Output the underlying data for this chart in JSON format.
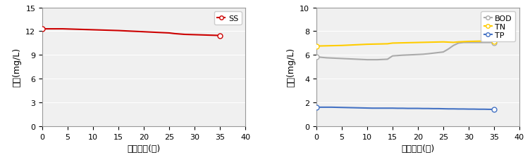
{
  "chart1": {
    "xlabel": "운전기간(일)",
    "ylabel": "농도(mg/L)",
    "ylim": [
      0,
      15
    ],
    "xlim": [
      0,
      40
    ],
    "yticks": [
      0,
      3,
      6,
      9,
      12,
      15
    ],
    "xticks": [
      0,
      5,
      10,
      15,
      20,
      25,
      30,
      35,
      40
    ],
    "series": [
      {
        "label": "SS",
        "color": "#cc0000",
        "marker": "o",
        "marker_color": "#cc0000",
        "x": [
          0,
          1,
          2,
          3,
          4,
          5,
          6,
          7,
          8,
          9,
          10,
          11,
          12,
          13,
          14,
          15,
          16,
          17,
          18,
          19,
          20,
          21,
          22,
          23,
          24,
          25,
          26,
          27,
          28,
          29,
          30,
          31,
          32,
          33,
          34,
          35
        ],
        "y": [
          12.3,
          12.3,
          12.3,
          12.3,
          12.3,
          12.28,
          12.26,
          12.24,
          12.22,
          12.2,
          12.18,
          12.16,
          12.14,
          12.12,
          12.1,
          12.08,
          12.05,
          12.02,
          11.99,
          11.96,
          11.93,
          11.9,
          11.87,
          11.84,
          11.81,
          11.78,
          11.7,
          11.65,
          11.6,
          11.58,
          11.56,
          11.54,
          11.52,
          11.5,
          11.48,
          11.46
        ]
      }
    ]
  },
  "chart2": {
    "xlabel": "운전기간(일)",
    "ylabel": "농도(mg/L)",
    "ylim": [
      0,
      10
    ],
    "xlim": [
      0,
      40
    ],
    "yticks": [
      0,
      2,
      4,
      6,
      8,
      10
    ],
    "xticks": [
      0,
      5,
      10,
      15,
      20,
      25,
      30,
      35,
      40
    ],
    "series": [
      {
        "label": "BOD",
        "color": "#aaaaaa",
        "marker": "o",
        "marker_color": "#aaaaaa",
        "x": [
          0,
          1,
          2,
          3,
          4,
          5,
          6,
          7,
          8,
          9,
          10,
          11,
          12,
          13,
          14,
          15,
          16,
          17,
          18,
          19,
          20,
          21,
          22,
          23,
          24,
          25,
          26,
          27,
          28,
          29,
          30,
          31,
          32,
          33,
          34,
          35
        ],
        "y": [
          5.85,
          5.8,
          5.76,
          5.74,
          5.72,
          5.7,
          5.68,
          5.66,
          5.64,
          5.62,
          5.6,
          5.6,
          5.6,
          5.62,
          5.64,
          5.92,
          5.95,
          5.98,
          6.0,
          6.02,
          6.04,
          6.06,
          6.1,
          6.15,
          6.2,
          6.25,
          6.5,
          6.8,
          7.0,
          7.05,
          7.05,
          7.05,
          7.05,
          7.05,
          7.05,
          7.05
        ]
      },
      {
        "label": "TN",
        "color": "#ffcc00",
        "marker": "o",
        "marker_color": "#ffcc00",
        "x": [
          0,
          1,
          2,
          3,
          4,
          5,
          6,
          7,
          8,
          9,
          10,
          11,
          12,
          13,
          14,
          15,
          16,
          17,
          18,
          19,
          20,
          21,
          22,
          23,
          24,
          25,
          26,
          27,
          28,
          29,
          30,
          31,
          32,
          33,
          34,
          35
        ],
        "y": [
          6.75,
          6.76,
          6.77,
          6.78,
          6.79,
          6.8,
          6.82,
          6.84,
          6.86,
          6.88,
          6.9,
          6.91,
          6.92,
          6.93,
          6.94,
          7.0,
          7.01,
          7.02,
          7.03,
          7.04,
          7.05,
          7.06,
          7.07,
          7.08,
          7.09,
          7.1,
          7.08,
          7.06,
          7.1,
          7.12,
          7.14,
          7.15,
          7.16,
          7.16,
          7.16,
          7.16
        ]
      },
      {
        "label": "TP",
        "color": "#4472c4",
        "marker": "o",
        "marker_color": "#4472c4",
        "x": [
          0,
          1,
          2,
          3,
          4,
          5,
          6,
          7,
          8,
          9,
          10,
          11,
          12,
          13,
          14,
          15,
          16,
          17,
          18,
          19,
          20,
          21,
          22,
          23,
          24,
          25,
          26,
          27,
          28,
          29,
          30,
          31,
          32,
          33,
          34,
          35
        ],
        "y": [
          1.6,
          1.6,
          1.6,
          1.6,
          1.59,
          1.58,
          1.57,
          1.56,
          1.55,
          1.54,
          1.53,
          1.52,
          1.52,
          1.52,
          1.52,
          1.52,
          1.51,
          1.51,
          1.5,
          1.5,
          1.5,
          1.49,
          1.49,
          1.48,
          1.48,
          1.47,
          1.46,
          1.46,
          1.45,
          1.45,
          1.44,
          1.44,
          1.43,
          1.43,
          1.42,
          1.42
        ]
      }
    ]
  },
  "bg_color": "#f0f0f0",
  "legend_marker_size": 5,
  "line_width": 1.5,
  "font_size_label": 9,
  "font_size_tick": 8,
  "font_size_legend": 8
}
